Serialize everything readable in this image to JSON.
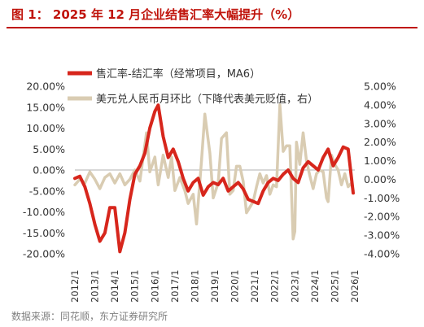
{
  "header": {
    "title": "图 1： 2025 年 12 月企业结售汇率大幅提升（%）"
  },
  "footer": {
    "source": "数据来源：同花顺，东方证券研究所"
  },
  "colors": {
    "series_fx_settlement": "#d7261c",
    "series_usd_cny": "#d9ccb2",
    "title": "#c0140c",
    "axis": "#333333"
  },
  "chart_data": {
    "type": "line",
    "title": "",
    "xlabel": "",
    "x_ticks": [
      "2012/1",
      "2013/1",
      "2014/1",
      "2015/1",
      "2016/1",
      "2017/1",
      "2018/1",
      "2019/1",
      "2020/1",
      "2021/1",
      "2022/1",
      "2023/1",
      "2024/1",
      "2025/1",
      "2026/1"
    ],
    "y_left": {
      "ticks": [
        "20.00%",
        "15.00%",
        "10.00%",
        "5.00%",
        "0.00%",
        "-5.00%",
        "-10.00%",
        "-15.00%",
        "-20.00%"
      ],
      "lim": [
        -20,
        20
      ]
    },
    "y_right": {
      "ticks": [
        "5.00%",
        "4.00%",
        "3.00%",
        "2.00%",
        "1.00%",
        "0.00%",
        "-1.00%",
        "-2.00%",
        "-3.00%",
        "-4.00%"
      ],
      "lim": [
        -4,
        5
      ]
    },
    "legend_position": "top-center",
    "series": [
      {
        "name": "售汇率-结汇率（经常项目，MA6）",
        "axis": "left",
        "color": "#d7261c",
        "points": [
          [
            "2012/01",
            -2
          ],
          [
            "2012/04",
            -1.5
          ],
          [
            "2012/07",
            -4
          ],
          [
            "2012/10",
            -8
          ],
          [
            "2013/01",
            -13
          ],
          [
            "2013/04",
            -17
          ],
          [
            "2013/07",
            -15
          ],
          [
            "2013/10",
            -9
          ],
          [
            "2014/01",
            -9
          ],
          [
            "2014/04",
            -19.5
          ],
          [
            "2014/07",
            -15
          ],
          [
            "2014/10",
            -7
          ],
          [
            "2015/01",
            -1
          ],
          [
            "2015/04",
            1
          ],
          [
            "2015/07",
            4
          ],
          [
            "2015/10",
            10
          ],
          [
            "2016/01",
            14
          ],
          [
            "2016/03",
            15.5
          ],
          [
            "2016/06",
            8
          ],
          [
            "2016/09",
            3
          ],
          [
            "2016/12",
            5
          ],
          [
            "2017/03",
            2
          ],
          [
            "2017/06",
            -2
          ],
          [
            "2017/09",
            -5
          ],
          [
            "2017/12",
            -3
          ],
          [
            "2018/03",
            -2
          ],
          [
            "2018/06",
            -6
          ],
          [
            "2018/09",
            -4
          ],
          [
            "2018/12",
            -3
          ],
          [
            "2019/03",
            -3.5
          ],
          [
            "2019/06",
            -2
          ],
          [
            "2019/09",
            -5
          ],
          [
            "2019/12",
            -4
          ],
          [
            "2020/03",
            -3
          ],
          [
            "2020/06",
            -4.5
          ],
          [
            "2020/09",
            -7
          ],
          [
            "2020/12",
            -7.5
          ],
          [
            "2021/03",
            -8
          ],
          [
            "2021/06",
            -5
          ],
          [
            "2021/09",
            -3
          ],
          [
            "2021/12",
            -2
          ],
          [
            "2022/03",
            -2.5
          ],
          [
            "2022/06",
            -1
          ],
          [
            "2022/09",
            0
          ],
          [
            "2022/12",
            -2
          ],
          [
            "2023/03",
            -3
          ],
          [
            "2023/06",
            0.5
          ],
          [
            "2023/09",
            2
          ],
          [
            "2023/12",
            1
          ],
          [
            "2024/03",
            0
          ],
          [
            "2024/06",
            3
          ],
          [
            "2024/09",
            5
          ],
          [
            "2024/12",
            1
          ],
          [
            "2025/03",
            3
          ],
          [
            "2025/06",
            5.5
          ],
          [
            "2025/09",
            5
          ],
          [
            "2025/12",
            -5.5
          ]
        ]
      },
      {
        "name": "美元兑人民币月环比（下降代表美元贬值，右）",
        "axis": "right",
        "color": "#d9ccb2",
        "points": [
          [
            "2012/01",
            -0.3
          ],
          [
            "2012/04",
            0
          ],
          [
            "2012/07",
            -0.2
          ],
          [
            "2012/10",
            0.4
          ],
          [
            "2013/01",
            0
          ],
          [
            "2013/04",
            -0.5
          ],
          [
            "2013/07",
            0.1
          ],
          [
            "2013/10",
            0.3
          ],
          [
            "2014/01",
            -0.2
          ],
          [
            "2014/04",
            0.3
          ],
          [
            "2014/07",
            -0.3
          ],
          [
            "2014/10",
            0
          ],
          [
            "2015/01",
            0.5
          ],
          [
            "2015/04",
            -0.1
          ],
          [
            "2015/08",
            2.5
          ],
          [
            "2015/10",
            0.4
          ],
          [
            "2016/01",
            1.2
          ],
          [
            "2016/03",
            -0.3
          ],
          [
            "2016/06",
            1.3
          ],
          [
            "2016/09",
            0.1
          ],
          [
            "2016/11",
            1.2
          ],
          [
            "2017/01",
            -0.6
          ],
          [
            "2017/04",
            0.1
          ],
          [
            "2017/07",
            -0.6
          ],
          [
            "2017/09",
            -1.3
          ],
          [
            "2017/12",
            -0.8
          ],
          [
            "2018/02",
            -2.4
          ],
          [
            "2018/05",
            1
          ],
          [
            "2018/07",
            3.5
          ],
          [
            "2018/10",
            1.4
          ],
          [
            "2018/12",
            -1
          ],
          [
            "2019/03",
            -0.2
          ],
          [
            "2019/05",
            2.2
          ],
          [
            "2019/08",
            2.5
          ],
          [
            "2019/10",
            -0.8
          ],
          [
            "2019/12",
            -0.6
          ],
          [
            "2020/02",
            0.7
          ],
          [
            "2020/04",
            0.7
          ],
          [
            "2020/06",
            -0.1
          ],
          [
            "2020/08",
            -1.8
          ],
          [
            "2020/10",
            -1.5
          ],
          [
            "2020/12",
            -1.2
          ],
          [
            "2021/02",
            -0.4
          ],
          [
            "2021/04",
            0.3
          ],
          [
            "2021/06",
            -0.2
          ],
          [
            "2021/08",
            0.2
          ],
          [
            "2021/10",
            -0.8
          ],
          [
            "2021/12",
            -0.3
          ],
          [
            "2022/02",
            -0.4
          ],
          [
            "2022/04",
            4
          ],
          [
            "2022/06",
            1.5
          ],
          [
            "2022/08",
            1.8
          ],
          [
            "2022/10",
            1.8
          ],
          [
            "2022/12",
            -3.2
          ],
          [
            "2023/01",
            -2.8
          ],
          [
            "2023/02",
            2
          ],
          [
            "2023/04",
            0.8
          ],
          [
            "2023/06",
            2.5
          ],
          [
            "2023/08",
            1
          ],
          [
            "2023/10",
            0.2
          ],
          [
            "2023/12",
            -0.5
          ],
          [
            "2024/02",
            0.3
          ],
          [
            "2024/04",
            0.5
          ],
          [
            "2024/06",
            0.4
          ],
          [
            "2024/08",
            -1
          ],
          [
            "2024/09",
            -1.2
          ],
          [
            "2024/11",
            1.3
          ],
          [
            "2025/01",
            0.8
          ],
          [
            "2025/03",
            0.5
          ],
          [
            "2025/05",
            -0.3
          ],
          [
            "2025/07",
            0.3
          ],
          [
            "2025/09",
            -0.4
          ],
          [
            "2025/11",
            -0.2
          ],
          [
            "2025/12",
            -0.6
          ]
        ]
      }
    ]
  }
}
